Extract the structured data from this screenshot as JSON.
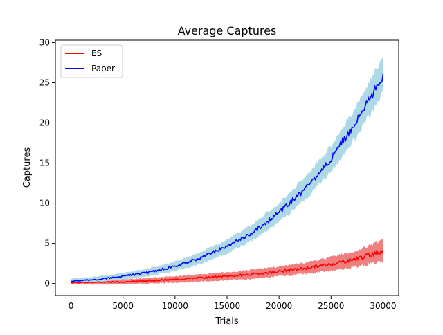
{
  "chart_data": {
    "type": "line",
    "title": "Average Captures",
    "xlabel": "Trials",
    "ylabel": "Captures",
    "xlim": [
      -1500,
      31500
    ],
    "ylim": [
      -1.5,
      30.3
    ],
    "xticks": [
      0,
      5000,
      10000,
      15000,
      20000,
      25000,
      30000
    ],
    "yticks": [
      0,
      5,
      10,
      15,
      20,
      25,
      30
    ],
    "grid": false,
    "legend_position": "top-left",
    "series": [
      {
        "name": "ES",
        "color": "#ff0000",
        "band_color": "#f08080",
        "x": [
          0,
          2500,
          5000,
          7500,
          10000,
          12500,
          15000,
          17500,
          20000,
          22500,
          25000,
          27500,
          30000
        ],
        "y": [
          0.1,
          0.15,
          0.2,
          0.35,
          0.5,
          0.7,
          0.9,
          1.15,
          1.5,
          1.9,
          2.4,
          3.1,
          4.1
        ],
        "band_halfwidth": [
          0.2,
          0.25,
          0.3,
          0.35,
          0.4,
          0.45,
          0.5,
          0.55,
          0.6,
          0.7,
          0.85,
          1.0,
          1.3
        ]
      },
      {
        "name": "Paper",
        "color": "#0000ff",
        "band_color": "#add8e6",
        "x": [
          0,
          2500,
          5000,
          7500,
          10000,
          12500,
          15000,
          17500,
          20000,
          22500,
          25000,
          27500,
          30000
        ],
        "y": [
          0.3,
          0.5,
          0.9,
          1.4,
          2.1,
          3.2,
          4.6,
          6.4,
          8.8,
          11.8,
          15.5,
          20.3,
          26.0
        ],
        "band_halfwidth": [
          0.3,
          0.35,
          0.4,
          0.5,
          0.6,
          0.7,
          0.85,
          1.0,
          1.2,
          1.4,
          1.6,
          1.9,
          2.3
        ]
      }
    ]
  }
}
